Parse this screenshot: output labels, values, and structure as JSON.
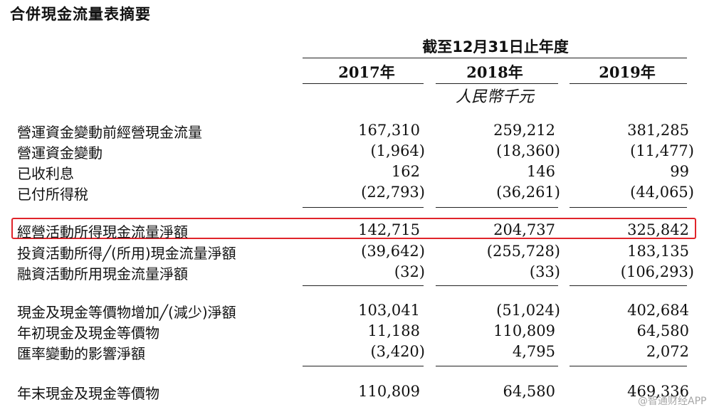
{
  "title": "合併現金流量表摘要",
  "header": {
    "period": "截至12月31日止年度",
    "years": [
      "2017年",
      "2018年",
      "2019年"
    ],
    "currency": "人民幣千元"
  },
  "rows": [
    {
      "label": "營運資金變動前經營現金流量",
      "values": [
        "167,310",
        "259,212",
        "381,285"
      ]
    },
    {
      "label": "營運資金變動",
      "values": [
        "(1,964)",
        "(18,360)",
        "(11,477)"
      ]
    },
    {
      "label": "已收利息",
      "values": [
        "162",
        "146",
        "99"
      ]
    },
    {
      "label": "已付所得稅",
      "values": [
        "(22,793)",
        "(36,261)",
        "(44,065)"
      ]
    },
    {
      "label": "經營活動所得現金流量淨額",
      "values": [
        "142,715",
        "204,737",
        "325,842"
      ]
    },
    {
      "label": "投資活動所得╱(所用)現金流量淨額",
      "values": [
        "(39,642)",
        "(255,728)",
        "183,135"
      ]
    },
    {
      "label": "融資活動所用現金流量淨額",
      "values": [
        "(32)",
        "(33)",
        "(106,293)"
      ]
    },
    {
      "label": "現金及現金等價物增加╱(減少)淨額",
      "values": [
        "103,041",
        "(51,024)",
        "402,684"
      ]
    },
    {
      "label": "年初現金及現金等價物",
      "values": [
        "11,188",
        "110,809",
        "64,580"
      ]
    },
    {
      "label": "匯率變動的影響淨額",
      "values": [
        "(3,420)",
        "4,795",
        "2,072"
      ]
    },
    {
      "label": "年末現金及現金等價物",
      "values": [
        "110,809",
        "64,580",
        "469,336"
      ]
    }
  ],
  "highlight_color": "#e0242a",
  "watermark": "@智通财经APP"
}
